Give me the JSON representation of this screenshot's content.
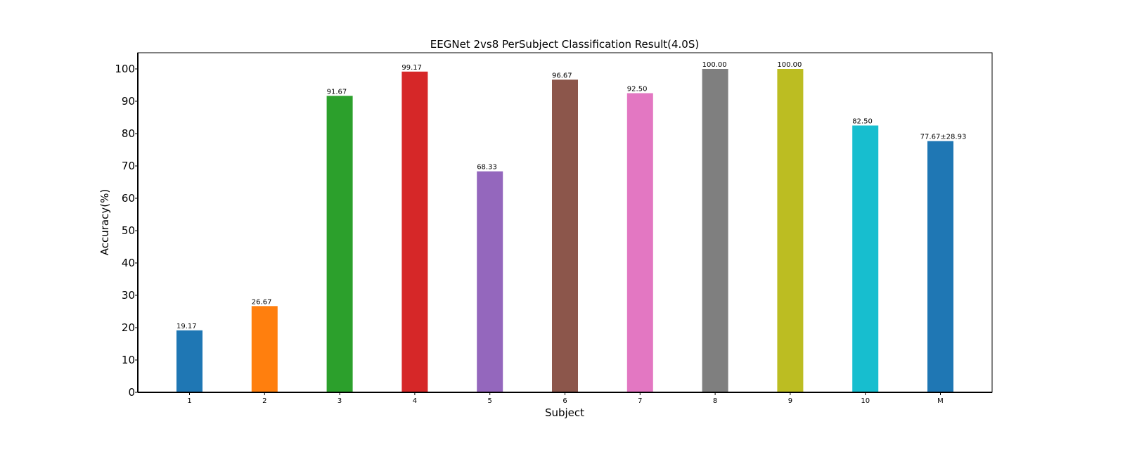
{
  "chart_data": {
    "type": "bar",
    "title": "EEGNet 2vs8 PerSubject Classification Result(4.0S)",
    "xlabel": "Subject",
    "ylabel": "Accuracy(%)",
    "ylim": [
      0,
      105
    ],
    "yticks": [
      0,
      10,
      20,
      30,
      40,
      50,
      60,
      70,
      80,
      90,
      100
    ],
    "grid": false,
    "categories": [
      "1",
      "2",
      "3",
      "4",
      "5",
      "6",
      "7",
      "8",
      "9",
      "10",
      "M"
    ],
    "values": [
      19.17,
      26.67,
      91.67,
      99.17,
      68.33,
      96.67,
      92.5,
      100.0,
      100.0,
      82.5,
      77.67
    ],
    "value_labels": [
      "19.17",
      "26.67",
      "91.67",
      "99.17",
      "68.33",
      "96.67",
      "92.50",
      "100.00",
      "100.00",
      "82.50",
      "77.67±28.93"
    ],
    "colors": [
      "#1f77b4",
      "#ff7f0e",
      "#2ca02c",
      "#d62728",
      "#9467bd",
      "#8c564b",
      "#e377c2",
      "#7f7f7f",
      "#bcbd22",
      "#17becf",
      "#1f77b4"
    ],
    "label_colors": [
      "#000000",
      "#000000",
      "#000000",
      "#000000",
      "#000000",
      "#000000",
      "#000000",
      "#000000",
      "#000000",
      "#000000",
      "#ff0000"
    ]
  }
}
